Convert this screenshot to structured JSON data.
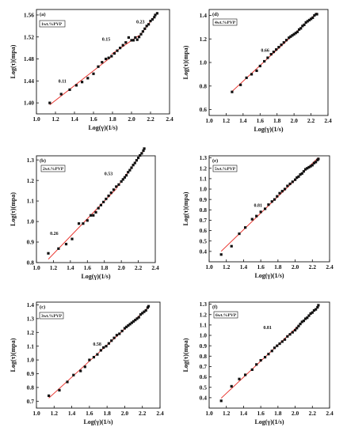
{
  "chart_data": [
    {
      "type": "scatter",
      "panel": "(a)",
      "legend": "1wt.%PVP",
      "xlabel": "Log(γ)(1/s)",
      "ylabel": "Log(τ)(mpa)",
      "xlim": [
        1.0,
        2.4
      ],
      "ylim": [
        1.38,
        1.57
      ],
      "xticks": [
        "1.0",
        "1.2",
        "1.4",
        "1.6",
        "1.8",
        "2.0",
        "2.2",
        "2.4"
      ],
      "yticks": [
        "1.40",
        "1.44",
        "1.48",
        "1.52",
        "1.56"
      ],
      "series": [
        {
          "x": [
            1.14,
            1.26,
            1.35,
            1.42,
            1.48,
            1.54,
            1.6,
            1.65,
            1.69,
            1.73,
            1.76,
            1.79,
            1.82,
            1.85,
            1.88,
            1.91,
            1.94,
            1.97,
            2.0,
            2.02,
            2.04,
            2.06,
            2.08,
            2.1,
            2.12,
            2.14,
            2.16,
            2.18,
            2.2,
            2.22,
            2.24,
            2.25,
            2.27
          ],
          "y": [
            1.4,
            1.416,
            1.424,
            1.432,
            1.438,
            1.445,
            1.453,
            1.466,
            1.474,
            1.48,
            1.482,
            1.485,
            1.49,
            1.495,
            1.5,
            1.505,
            1.51,
            1.519,
            1.514,
            1.514,
            1.519,
            1.515,
            1.52,
            1.525,
            1.53,
            1.535,
            1.54,
            1.543,
            1.549,
            1.552,
            1.556,
            1.56,
            1.563
          ]
        }
      ],
      "annotations": [
        {
          "text": "0.11",
          "x": 1.23,
          "y": 1.437
        },
        {
          "text": "0.15",
          "x": 1.69,
          "y": 1.513
        },
        {
          "text": "0.23",
          "x": 2.05,
          "y": 1.545
        }
      ]
    },
    {
      "type": "scatter",
      "panel": "(d)",
      "legend": "4wt.%PVP",
      "xlabel": "Log(γ)(1/s)",
      "ylabel": "Log(τ)(mpa)",
      "xlim": [
        1.0,
        2.4
      ],
      "ylim": [
        0.55,
        1.45
      ],
      "xticks": [
        "1.0",
        "1.2",
        "1.4",
        "1.6",
        "1.8",
        "2.0",
        "2.2",
        "2.4"
      ],
      "yticks": [
        "0.6",
        "0.8",
        "1.0",
        "1.2",
        "1.4"
      ],
      "series": [
        {
          "x": [
            1.27,
            1.37,
            1.44,
            1.5,
            1.56,
            1.6,
            1.65,
            1.69,
            1.73,
            1.76,
            1.79,
            1.82,
            1.85,
            1.88,
            1.91,
            1.94,
            1.96,
            1.98,
            2.0,
            2.02,
            2.04,
            2.06,
            2.08,
            2.1,
            2.12,
            2.14,
            2.16,
            2.18,
            2.2,
            2.22,
            2.24,
            2.26,
            2.27
          ],
          "y": [
            0.75,
            0.81,
            0.87,
            0.9,
            0.93,
            0.97,
            1.01,
            1.04,
            1.07,
            1.09,
            1.11,
            1.13,
            1.15,
            1.17,
            1.19,
            1.21,
            1.22,
            1.23,
            1.24,
            1.25,
            1.26,
            1.28,
            1.29,
            1.31,
            1.32,
            1.34,
            1.35,
            1.36,
            1.37,
            1.38,
            1.4,
            1.41,
            1.41
          ]
        }
      ],
      "annotations": [
        {
          "text": "0.66",
          "x": 1.61,
          "y": 1.09
        }
      ]
    },
    {
      "type": "scatter",
      "panel": "(b)",
      "legend": "2wt.%PVP",
      "xlabel": "Log(γ)(1/s)",
      "ylabel": "Log(τ)(mpa)",
      "xlim": [
        1.0,
        2.4
      ],
      "ylim": [
        0.8,
        1.32
      ],
      "xticks": [
        "1.0",
        "1.2",
        "1.4",
        "1.6",
        "1.8",
        "2.0",
        "2.2",
        "2.4"
      ],
      "yticks": [
        "0.8",
        "0.9",
        "1.0",
        "1.1",
        "1.2",
        "1.3"
      ],
      "series": [
        {
          "x": [
            1.14,
            1.26,
            1.35,
            1.42,
            1.5,
            1.55,
            1.6,
            1.64,
            1.67,
            1.7,
            1.73,
            1.76,
            1.79,
            1.82,
            1.85,
            1.88,
            1.91,
            1.94,
            1.97,
            2.0,
            2.02,
            2.04,
            2.06,
            2.08,
            2.1,
            2.12,
            2.14,
            2.16,
            2.18,
            2.2,
            2.22,
            2.24,
            2.26,
            2.27
          ],
          "y": [
            0.845,
            0.868,
            0.89,
            0.915,
            0.99,
            0.99,
            1.005,
            1.03,
            1.03,
            1.045,
            1.065,
            1.08,
            1.095,
            1.11,
            1.125,
            1.14,
            1.155,
            1.17,
            1.18,
            1.195,
            1.205,
            1.215,
            1.225,
            1.24,
            1.25,
            1.262,
            1.275,
            1.285,
            1.298,
            1.31,
            1.322,
            1.332,
            1.345,
            1.355
          ]
        }
      ],
      "annotations": [
        {
          "text": "0.26",
          "x": 1.16,
          "y": 0.935
        },
        {
          "text": "0.53",
          "x": 1.8,
          "y": 1.225
        }
      ]
    },
    {
      "type": "scatter",
      "panel": "(e)",
      "legend": "5wt.%PVP",
      "xlabel": "Log(γ)(1/s)",
      "ylabel": "Log(τ)(mpa)",
      "xlim": [
        1.0,
        2.4
      ],
      "ylim": [
        0.3,
        1.32
      ],
      "xticks": [
        "1.0",
        "1.2",
        "1.4",
        "1.6",
        "1.8",
        "2.0",
        "2.2",
        "2.4"
      ],
      "yticks": [
        "0.4",
        "0.5",
        "0.6",
        "0.7",
        "0.8",
        "0.9",
        "1.0",
        "1.1",
        "1.2",
        "1.3"
      ],
      "series": [
        {
          "x": [
            1.14,
            1.26,
            1.35,
            1.42,
            1.5,
            1.55,
            1.6,
            1.65,
            1.69,
            1.73,
            1.76,
            1.79,
            1.82,
            1.85,
            1.88,
            1.91,
            1.94,
            1.97,
            2.0,
            2.02,
            2.04,
            2.06,
            2.08,
            2.1,
            2.12,
            2.14,
            2.16,
            2.18,
            2.2,
            2.22,
            2.24,
            2.26,
            2.27
          ],
          "y": [
            0.37,
            0.45,
            0.57,
            0.63,
            0.71,
            0.74,
            0.78,
            0.81,
            0.85,
            0.88,
            0.9,
            0.93,
            0.96,
            0.98,
            1.0,
            1.03,
            1.05,
            1.07,
            1.09,
            1.11,
            1.12,
            1.14,
            1.15,
            1.17,
            1.19,
            1.2,
            1.21,
            1.22,
            1.23,
            1.25,
            1.26,
            1.28,
            1.29
          ]
        }
      ],
      "annotations": [
        {
          "text": "0.81",
          "x": 1.52,
          "y": 0.83
        }
      ]
    },
    {
      "type": "scatter",
      "panel": "(c)",
      "legend": "3wt.%PVP",
      "xlabel": "Log(γ)(1/s)",
      "ylabel": "Log(τ)(mpa)",
      "xlim": [
        1.0,
        2.4
      ],
      "ylim": [
        0.65,
        1.42
      ],
      "xticks": [
        "1.0",
        "1.2",
        "1.4",
        "1.6",
        "1.8",
        "2.0",
        "2.2",
        "2.4"
      ],
      "yticks": [
        "0.7",
        "0.8",
        "0.9",
        "1.0",
        "1.1",
        "1.2",
        "1.3",
        "1.4"
      ],
      "series": [
        {
          "x": [
            1.14,
            1.26,
            1.35,
            1.42,
            1.5,
            1.55,
            1.6,
            1.65,
            1.69,
            1.73,
            1.76,
            1.79,
            1.82,
            1.85,
            1.88,
            1.91,
            1.94,
            1.97,
            2.0,
            2.02,
            2.04,
            2.06,
            2.08,
            2.1,
            2.12,
            2.14,
            2.16,
            2.18,
            2.2,
            2.22,
            2.24,
            2.26,
            2.27
          ],
          "y": [
            0.74,
            0.78,
            0.84,
            0.89,
            0.92,
            0.95,
            1.0,
            1.02,
            1.04,
            1.07,
            1.09,
            1.1,
            1.12,
            1.14,
            1.16,
            1.18,
            1.19,
            1.21,
            1.23,
            1.24,
            1.25,
            1.26,
            1.27,
            1.28,
            1.29,
            1.3,
            1.31,
            1.33,
            1.34,
            1.35,
            1.36,
            1.38,
            1.39
          ]
        }
      ],
      "annotations": [
        {
          "text": "0.58",
          "x": 1.64,
          "y": 1.105
        }
      ]
    },
    {
      "type": "scatter",
      "panel": "(f)",
      "legend": "6wt.%PVP",
      "xlabel": "Log(γ)(1/s)",
      "ylabel": "Log(τ)(mpa)",
      "xlim": [
        1.0,
        2.4
      ],
      "ylim": [
        0.3,
        1.32
      ],
      "xticks": [
        "1.0",
        "1.2",
        "1.4",
        "1.6",
        "1.8",
        "2.0",
        "2.2",
        "2.4"
      ],
      "yticks": [
        "0.4",
        "0.5",
        "0.6",
        "0.7",
        "0.8",
        "0.9",
        "1.0",
        "1.1",
        "1.2",
        "1.3"
      ],
      "series": [
        {
          "x": [
            1.14,
            1.26,
            1.35,
            1.42,
            1.5,
            1.55,
            1.6,
            1.65,
            1.69,
            1.73,
            1.76,
            1.79,
            1.82,
            1.85,
            1.88,
            1.91,
            1.94,
            1.97,
            2.0,
            2.02,
            2.04,
            2.06,
            2.08,
            2.1,
            2.12,
            2.14,
            2.16,
            2.18,
            2.2,
            2.22,
            2.24,
            2.26,
            2.27
          ],
          "y": [
            0.37,
            0.51,
            0.58,
            0.62,
            0.67,
            0.72,
            0.76,
            0.79,
            0.82,
            0.85,
            0.88,
            0.9,
            0.92,
            0.94,
            0.96,
            0.99,
            1.01,
            1.03,
            1.05,
            1.07,
            1.09,
            1.11,
            1.13,
            1.14,
            1.16,
            1.17,
            1.19,
            1.21,
            1.22,
            1.24,
            1.25,
            1.27,
            1.29
          ]
        }
      ],
      "annotations": [
        {
          "text": "0.81",
          "x": 1.63,
          "y": 1.06
        }
      ]
    }
  ],
  "colors": {
    "marker": "#111111",
    "fit_line": "#e8261f",
    "axis": "#111111"
  }
}
